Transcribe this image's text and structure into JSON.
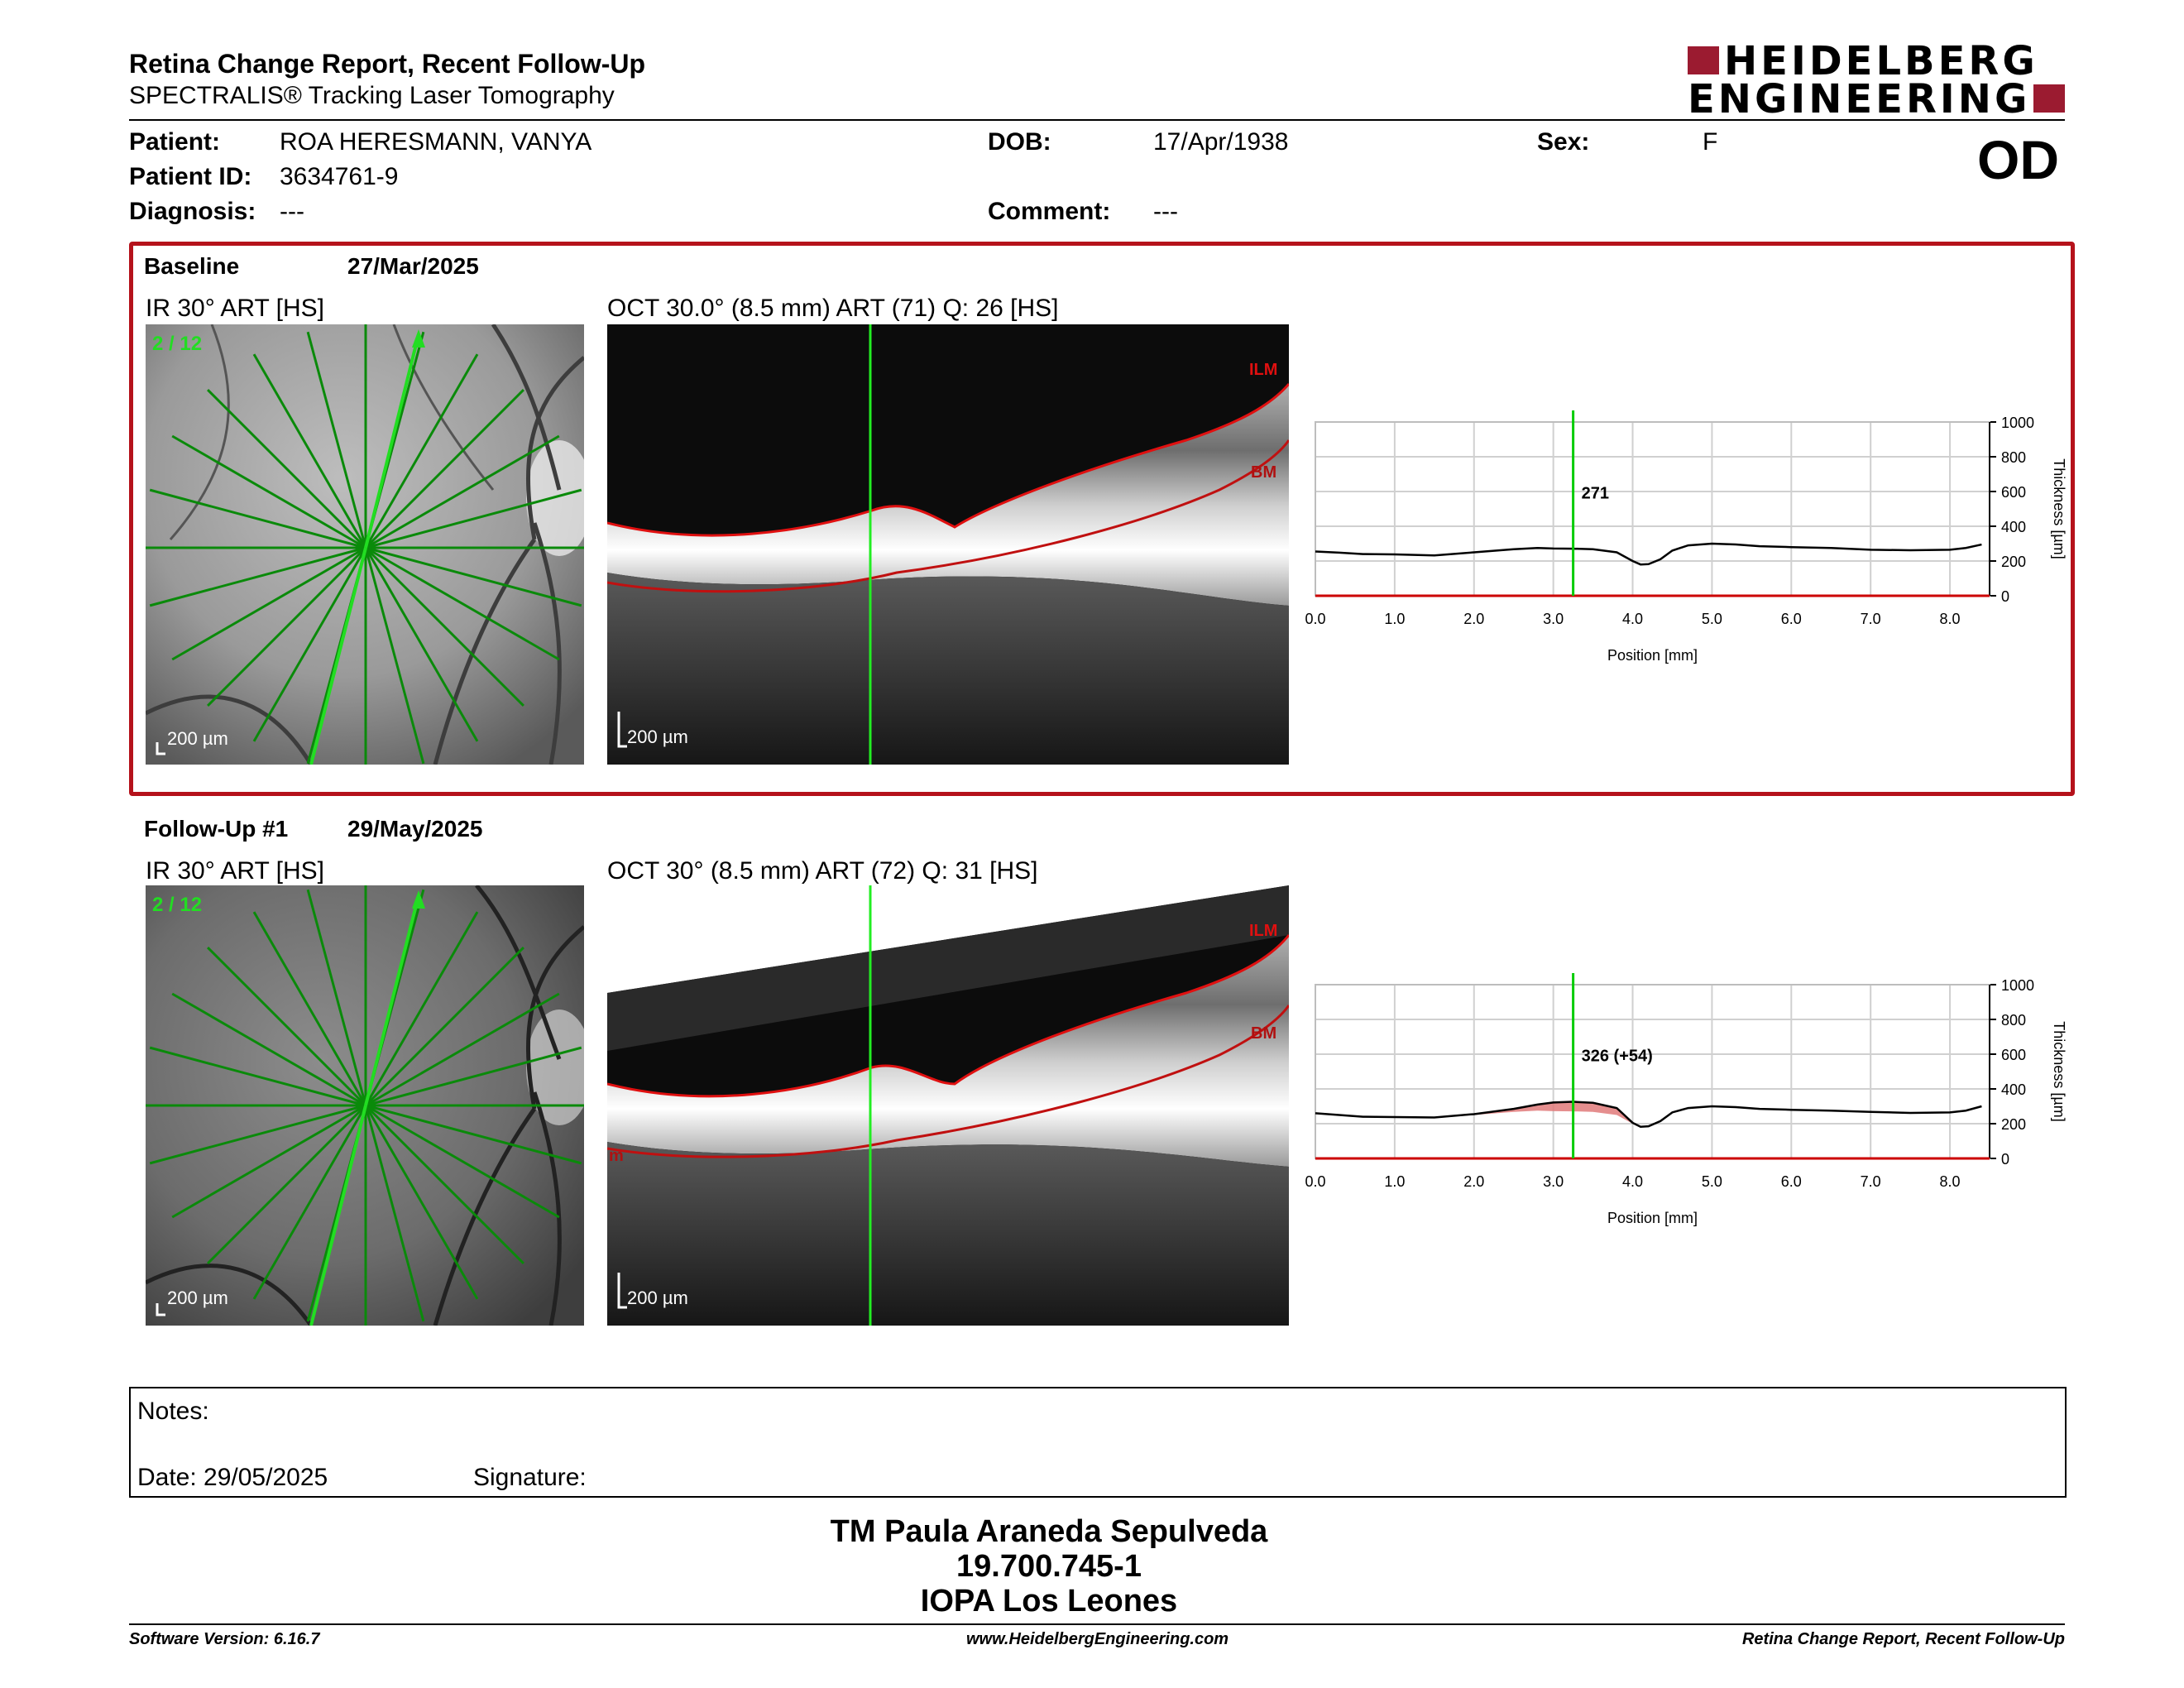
{
  "header": {
    "title": "Retina Change Report, Recent Follow-Up",
    "subtitle": "SPECTRALIS® Tracking Laser Tomography",
    "logo_line1": "HEIDELBERG",
    "logo_line2": "ENGINEERING",
    "eye": "OD"
  },
  "patient": {
    "patient_label": "Patient:",
    "patient_value": "ROA HERESMANN, VANYA",
    "id_label": "Patient ID:",
    "id_value": "3634761-9",
    "diagnosis_label": "Diagnosis:",
    "diagnosis_value": "---",
    "dob_label": "DOB:",
    "dob_value": "17/Apr/1938",
    "comment_label": "Comment:",
    "comment_value": "---",
    "sex_label": "Sex:",
    "sex_value": "F"
  },
  "baseline": {
    "label": "Baseline",
    "date": "27/Mar/2025",
    "ir_title": "IR 30° ART [HS]",
    "ir_counter": "2 / 12",
    "ir_scale": "200 µm",
    "oct_title": "OCT 30.0° (8.5 mm) ART (71) Q: 26 [HS]",
    "oct_scale": "200 µm",
    "ilm": "ILM",
    "bm": "BM"
  },
  "followup": {
    "label": "Follow-Up #1",
    "date": "29/May/2025",
    "ir_title": "IR 30° ART [HS]",
    "ir_counter": "2 / 12",
    "ir_scale": "200 µm",
    "oct_title": "OCT 30° (8.5 mm) ART (72) Q: 31 [HS]",
    "oct_scale": "200 µm",
    "ilm": "ILM",
    "bm": "BM",
    "m_fragment": "m"
  },
  "chart_data": [
    {
      "type": "line",
      "xlabel": "Position [mm]",
      "ylabel": "Thickness [µm]",
      "xlim": [
        0,
        8.5
      ],
      "ylim": [
        0,
        1000
      ],
      "xticks": [
        "0.0",
        "1.0",
        "2.0",
        "3.0",
        "4.0",
        "5.0",
        "6.0",
        "7.0",
        "8.0"
      ],
      "yticks": [
        "0",
        "200",
        "400",
        "600",
        "800",
        "1000"
      ],
      "cursor_x": 3.25,
      "cursor_label": "271",
      "series": [
        {
          "x": [
            0,
            0.3,
            0.6,
            1.0,
            1.5,
            2.0,
            2.5,
            2.8,
            3.0,
            3.25,
            3.5,
            3.8,
            4.0,
            4.1,
            4.2,
            4.35,
            4.5,
            4.7,
            5.0,
            5.3,
            5.6,
            6.0,
            6.5,
            7.0,
            7.5,
            8.0,
            8.2,
            8.4
          ],
          "y": [
            255,
            248,
            240,
            238,
            232,
            250,
            268,
            275,
            272,
            271,
            268,
            250,
            200,
            180,
            182,
            210,
            260,
            290,
            300,
            295,
            285,
            280,
            275,
            265,
            262,
            265,
            275,
            295
          ]
        }
      ],
      "colors": {
        "line": "#000000",
        "cursor": "#00cc00",
        "baseline": "#cc0000"
      }
    },
    {
      "type": "line",
      "xlabel": "Position [mm]",
      "ylabel": "Thickness [µm]",
      "xlim": [
        0,
        8.5
      ],
      "ylim": [
        0,
        1000
      ],
      "xticks": [
        "0.0",
        "1.0",
        "2.0",
        "3.0",
        "4.0",
        "5.0",
        "6.0",
        "7.0",
        "8.0"
      ],
      "yticks": [
        "0",
        "200",
        "400",
        "600",
        "800",
        "1000"
      ],
      "cursor_x": 3.25,
      "cursor_label": "326 (+54)",
      "series": [
        {
          "x": [
            0,
            0.3,
            0.6,
            1.0,
            1.5,
            2.0,
            2.5,
            2.8,
            3.0,
            3.25,
            3.5,
            3.8,
            4.0,
            4.1,
            4.2,
            4.35,
            4.5,
            4.7,
            5.0,
            5.3,
            5.6,
            6.0,
            6.5,
            7.0,
            7.5,
            8.0,
            8.2,
            8.4
          ],
          "y": [
            260,
            250,
            240,
            238,
            236,
            255,
            285,
            310,
            322,
            326,
            320,
            290,
            205,
            182,
            185,
            215,
            265,
            290,
            300,
            295,
            285,
            280,
            275,
            268,
            262,
            265,
            275,
            300
          ]
        },
        {
          "x": [
            0,
            0.3,
            0.6,
            1.0,
            1.5,
            2.0,
            2.5,
            2.8,
            3.0,
            3.25,
            3.5,
            3.8,
            4.0,
            4.1,
            4.2,
            4.35,
            4.5,
            4.7,
            5.0,
            5.3,
            5.6,
            6.0,
            6.5,
            7.0,
            7.5,
            8.0,
            8.2,
            8.4
          ],
          "y": [
            255,
            248,
            240,
            238,
            232,
            250,
            268,
            275,
            272,
            271,
            268,
            250,
            200,
            180,
            182,
            210,
            260,
            290,
            300,
            295,
            285,
            280,
            275,
            265,
            262,
            265,
            275,
            295
          ]
        }
      ],
      "colors": {
        "line": "#000000",
        "cursor": "#00cc00",
        "baseline": "#cc0000",
        "increase_fill": "#e07a7a"
      }
    }
  ],
  "notes": {
    "label": "Notes:",
    "date": "Date: 29/05/2025",
    "signature": "Signature:"
  },
  "stamp": {
    "line1": "TM Paula Araneda Sepulveda",
    "line2": "19.700.745-1",
    "line3": "IOPA Los Leones"
  },
  "footer": {
    "version": "Software Version: 6.16.7",
    "url": "www.HeidelbergEngineering.com",
    "report": "Retina Change Report, Recent Follow-Up"
  }
}
